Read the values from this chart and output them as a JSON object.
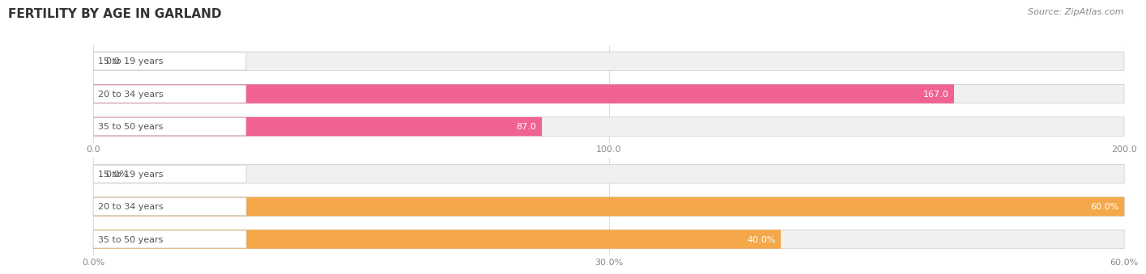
{
  "title": "FERTILITY BY AGE IN GARLAND",
  "source": "Source: ZipAtlas.com",
  "chart1": {
    "categories": [
      "15 to 19 years",
      "20 to 34 years",
      "35 to 50 years"
    ],
    "values": [
      0.0,
      167.0,
      87.0
    ],
    "xlim": [
      0,
      200
    ],
    "xticks": [
      0.0,
      100.0,
      200.0
    ],
    "xtick_labels": [
      "0.0",
      "100.0",
      "200.0"
    ],
    "bar_color": "#f06292",
    "bar_bg_color": "#f0f0f0",
    "bar_label_inside_color": "#ffffff",
    "bar_height": 0.55
  },
  "chart2": {
    "categories": [
      "15 to 19 years",
      "20 to 34 years",
      "35 to 50 years"
    ],
    "values": [
      0.0,
      60.0,
      40.0
    ],
    "xlim": [
      0,
      60
    ],
    "xticks": [
      0.0,
      30.0,
      60.0
    ],
    "xtick_labels": [
      "0.0%",
      "30.0%",
      "60.0%"
    ],
    "bar_color": "#f4a84a",
    "bar_bg_color": "#f0f0f0",
    "bar_label_inside_color": "#ffffff",
    "bar_height": 0.55
  },
  "label_value_color": "#555555",
  "label_text_color": "#555555",
  "label_box_color": "#ffffff",
  "title_fontsize": 11,
  "source_fontsize": 8,
  "tick_fontsize": 8,
  "label_fontsize": 8,
  "value_fontsize": 8,
  "background_color": "#ffffff",
  "grid_color": "#dddddd"
}
